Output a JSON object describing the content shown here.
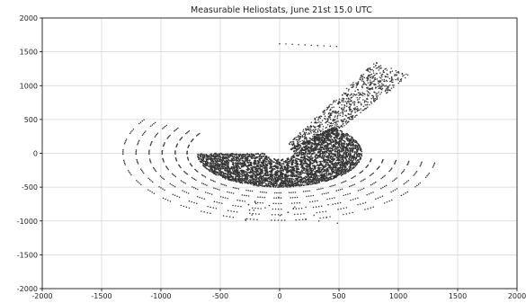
{
  "chart_data": {
    "type": "scatter",
    "title": "Measurable Heliostats, June 21st 15.0 UTC",
    "xlabel": "",
    "ylabel": "",
    "xlim": [
      -2000,
      2000
    ],
    "ylim": [
      -2000,
      2000
    ],
    "xticks": [
      "-2000",
      "-1500",
      "-1000",
      "-500",
      "0",
      "500",
      "1000",
      "1500",
      "2000"
    ],
    "yticks": [
      "2000",
      "1500",
      "1000",
      "500",
      "0",
      "-500",
      "-1000",
      "-1500",
      "-2000"
    ],
    "grid": true,
    "legend": "none",
    "colors": {
      "points": "#333333",
      "grid": "#d4d4d4",
      "axes": "#000000"
    },
    "point_groups": [
      {
        "name": "field-ring",
        "pattern": "ring",
        "center": [
          0,
          0
        ],
        "r_min": 130,
        "r_max": 700,
        "step": 18,
        "angle_from": 180,
        "angle_to": 410,
        "density": 0.9,
        "cluster_count": 5
      },
      {
        "name": "outer-arcs",
        "pattern": "arcs",
        "center": [
          0,
          0
        ],
        "radii": [
          780,
          880,
          990,
          1100,
          1210,
          1320
        ],
        "angle_from": 150,
        "angle_to": 350,
        "dash_deg": 5,
        "gap_deg": 4
      },
      {
        "name": "ne-beam",
        "pattern": "beam",
        "start": [
          150,
          60
        ],
        "end": [
          950,
          1250
        ],
        "half_width": 180,
        "count": 900
      },
      {
        "name": "sparse-top",
        "pattern": "line",
        "from": [
          0,
          1620
        ],
        "to": [
          480,
          1580
        ],
        "count": 10
      },
      {
        "name": "sparse-bottom",
        "pattern": "scatter-box",
        "x_range": [
          -300,
          500
        ],
        "y_range": [
          -1050,
          -650
        ],
        "count": 25
      }
    ]
  }
}
